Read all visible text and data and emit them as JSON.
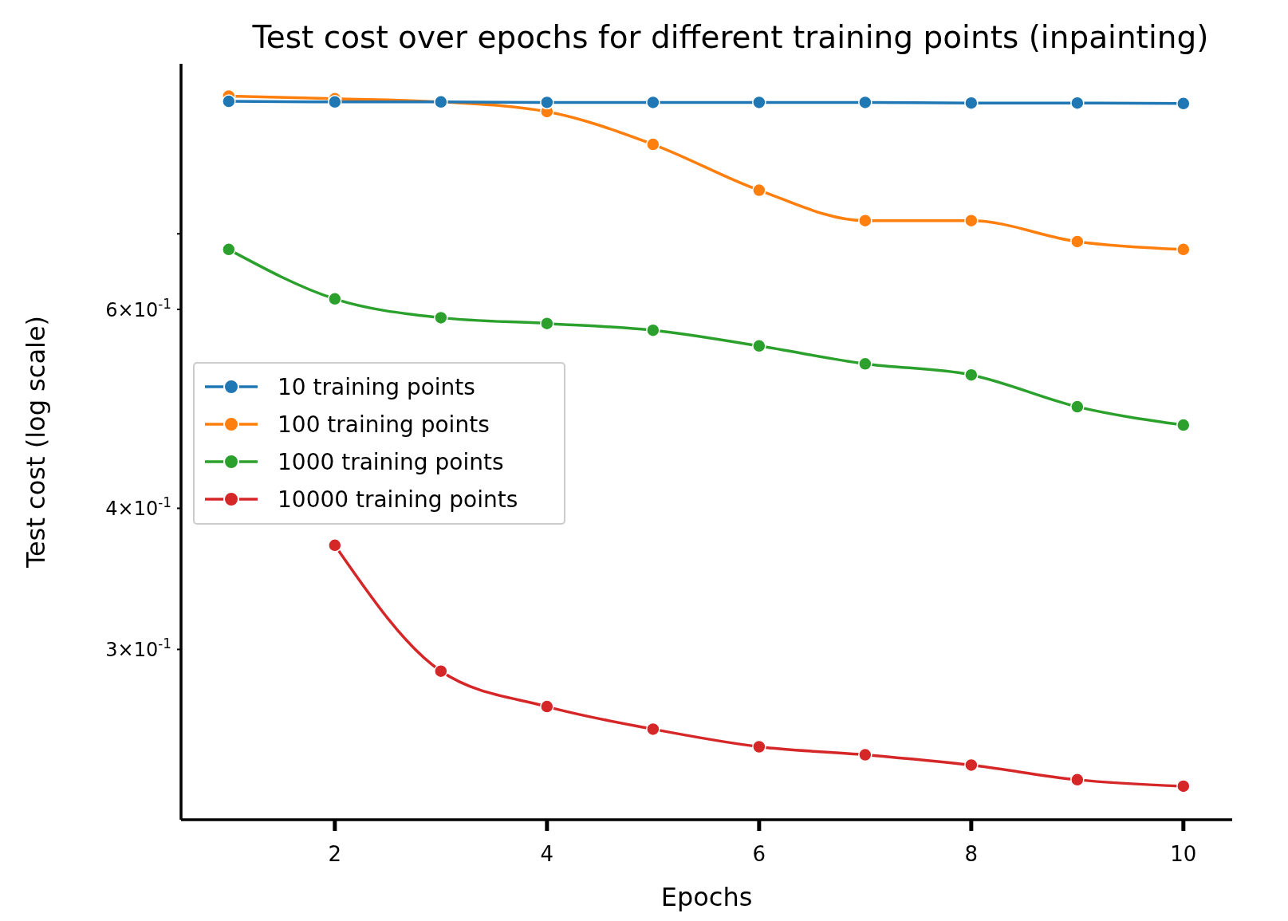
{
  "chart_data": {
    "type": "line",
    "title": "Test cost over epochs for different training points (inpainting)",
    "xlabel": "Epochs",
    "ylabel": "Test cost (log scale)",
    "x": [
      1,
      2,
      3,
      4,
      5,
      6,
      7,
      8,
      9,
      10
    ],
    "series": [
      {
        "name": "10 training points",
        "color": "#1f77b4",
        "values": [
          0.917,
          0.916,
          0.916,
          0.915,
          0.915,
          0.915,
          0.915,
          0.914,
          0.914,
          0.913
        ]
      },
      {
        "name": "100 training points",
        "color": "#ff7f0e",
        "values": [
          0.927,
          0.922,
          0.916,
          0.898,
          0.84,
          0.765,
          0.719,
          0.719,
          0.689,
          0.678
        ]
      },
      {
        "name": "1000 training points",
        "color": "#2ca02c",
        "values": [
          0.678,
          0.613,
          0.59,
          0.583,
          0.575,
          0.557,
          0.537,
          0.525,
          0.492,
          0.474
        ]
      },
      {
        "name": "10000 training points",
        "color": "#d62728",
        "values": [
          null,
          0.371,
          0.287,
          0.267,
          0.255,
          0.246,
          0.242,
          0.237,
          0.23,
          0.227
        ]
      }
    ],
    "log": "y",
    "xlim": [
      0.55,
      10.46
    ],
    "ylim": [
      0.212,
      0.99
    ],
    "xticks": [
      2,
      4,
      6,
      8,
      10
    ],
    "yticks": [
      {
        "value": 0.3,
        "label": "3×10$^{-1}$"
      },
      {
        "value": 0.4,
        "label": "4×10$^{-1}$"
      },
      {
        "value": 0.6,
        "label": "6×10$^{-1}$"
      },
      {
        "value": 0.7,
        "label": null
      }
    ],
    "marker": "circle",
    "line_style": "solid",
    "grid": false,
    "legend": "center left"
  }
}
